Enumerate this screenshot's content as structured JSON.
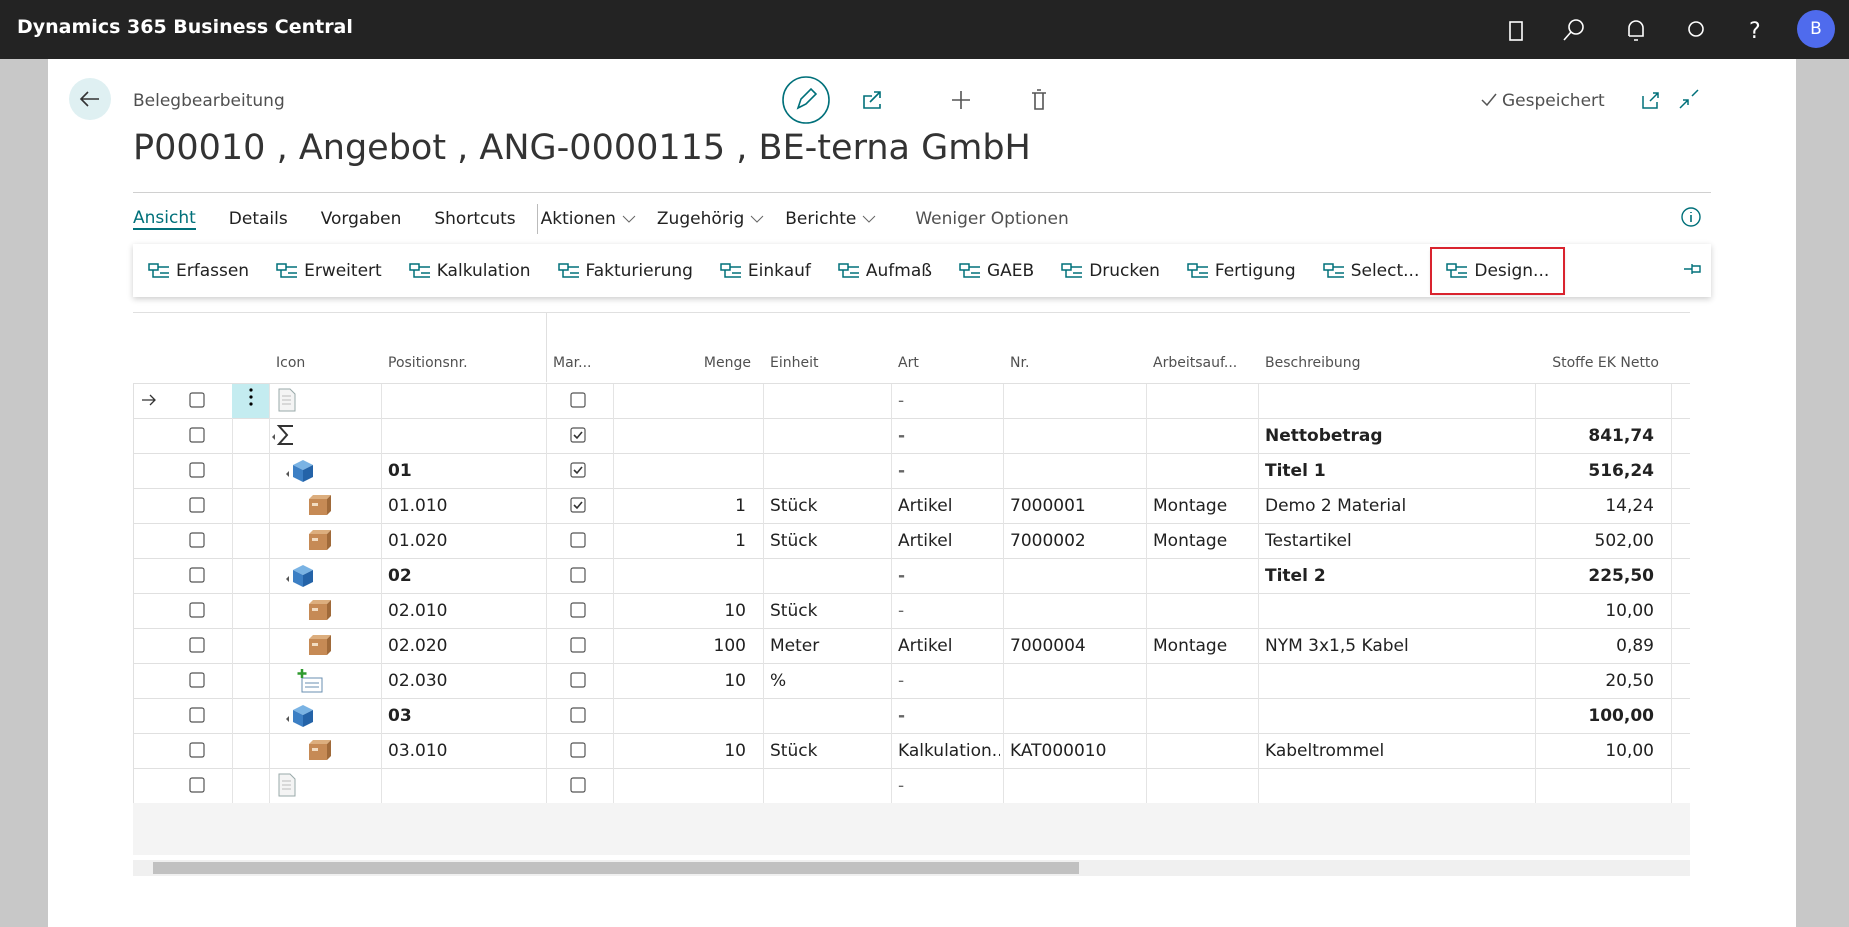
{
  "header": {
    "app": "Dynamics 365 Business Central",
    "avatar": "B"
  },
  "page": {
    "breadcrumb": "Belegbearbeitung",
    "title": "P00010 , Angebot , ANG-0000115 , BE-terna GmbH",
    "status": "Gespeichert"
  },
  "tabs": [
    "Ansicht",
    "Details",
    "Vorgaben",
    "Shortcuts"
  ],
  "menus": [
    "Aktionen",
    "Zugehörig",
    "Berichte"
  ],
  "less": "Weniger Optionen",
  "actions": [
    "Erfassen",
    "Erweitert",
    "Kalkulation",
    "Fakturierung",
    "Einkauf",
    "Aufmaß",
    "GAEB",
    "Drucken",
    "Fertigung",
    "Select...",
    "Design..."
  ],
  "table": {
    "columns": [
      "Icon",
      "Positionsnr.",
      "Mar...",
      "Menge",
      "Einheit",
      "Art",
      "Nr.",
      "Arbeitsauf...",
      "Beschreibung",
      "Stoffe EK Netto"
    ],
    "rows": [
      {
        "icon": "doc",
        "marked": false,
        "art": "-"
      },
      {
        "icon": "sum",
        "bold": true,
        "marked": true,
        "art": "-",
        "beschr": "Nettobetrag",
        "stoffe": "841,74"
      },
      {
        "icon": "cube",
        "bold": true,
        "pos": "01",
        "marked": true,
        "art": "-",
        "beschr": "Titel 1",
        "stoffe": "516,24"
      },
      {
        "icon": "box",
        "pos": "01.010",
        "marked": true,
        "menge": "1",
        "einheit": "Stück",
        "art": "Artikel",
        "nr": "7000001",
        "arbeit": "Montage",
        "beschr": "Demo 2 Material",
        "stoffe": "14,24"
      },
      {
        "icon": "box",
        "pos": "01.020",
        "marked": false,
        "menge": "1",
        "einheit": "Stück",
        "art": "Artikel",
        "nr": "7000002",
        "arbeit": "Montage",
        "beschr": "Testartikel",
        "stoffe": "502,00"
      },
      {
        "icon": "cube",
        "bold": true,
        "pos": "02",
        "marked": false,
        "art": "-",
        "beschr": "Titel 2",
        "stoffe": "225,50"
      },
      {
        "icon": "box",
        "pos": "02.010",
        "marked": false,
        "menge": "10",
        "einheit": "Stück",
        "art": "-",
        "stoffe": "10,00"
      },
      {
        "icon": "box",
        "pos": "02.020",
        "marked": false,
        "menge": "100",
        "einheit": "Meter",
        "art": "Artikel",
        "nr": "7000004",
        "arbeit": "Montage",
        "beschr": "NYM 3x1,5 Kabel",
        "stoffe": "0,89"
      },
      {
        "icon": "plus",
        "pos": "02.030",
        "marked": false,
        "menge": "10",
        "einheit": "%",
        "art": "-",
        "stoffe": "20,50"
      },
      {
        "icon": "cube",
        "bold": true,
        "pos": "03",
        "marked": false,
        "art": "-",
        "stoffe": "100,00"
      },
      {
        "icon": "box",
        "pos": "03.010",
        "marked": false,
        "menge": "10",
        "einheit": "Stück",
        "art": "Kalkulation...",
        "nr": "KAT000010",
        "beschr": "Kabeltrommel",
        "stoffe": "10,00"
      },
      {
        "icon": "doc",
        "marked": false,
        "art": "-"
      }
    ]
  }
}
